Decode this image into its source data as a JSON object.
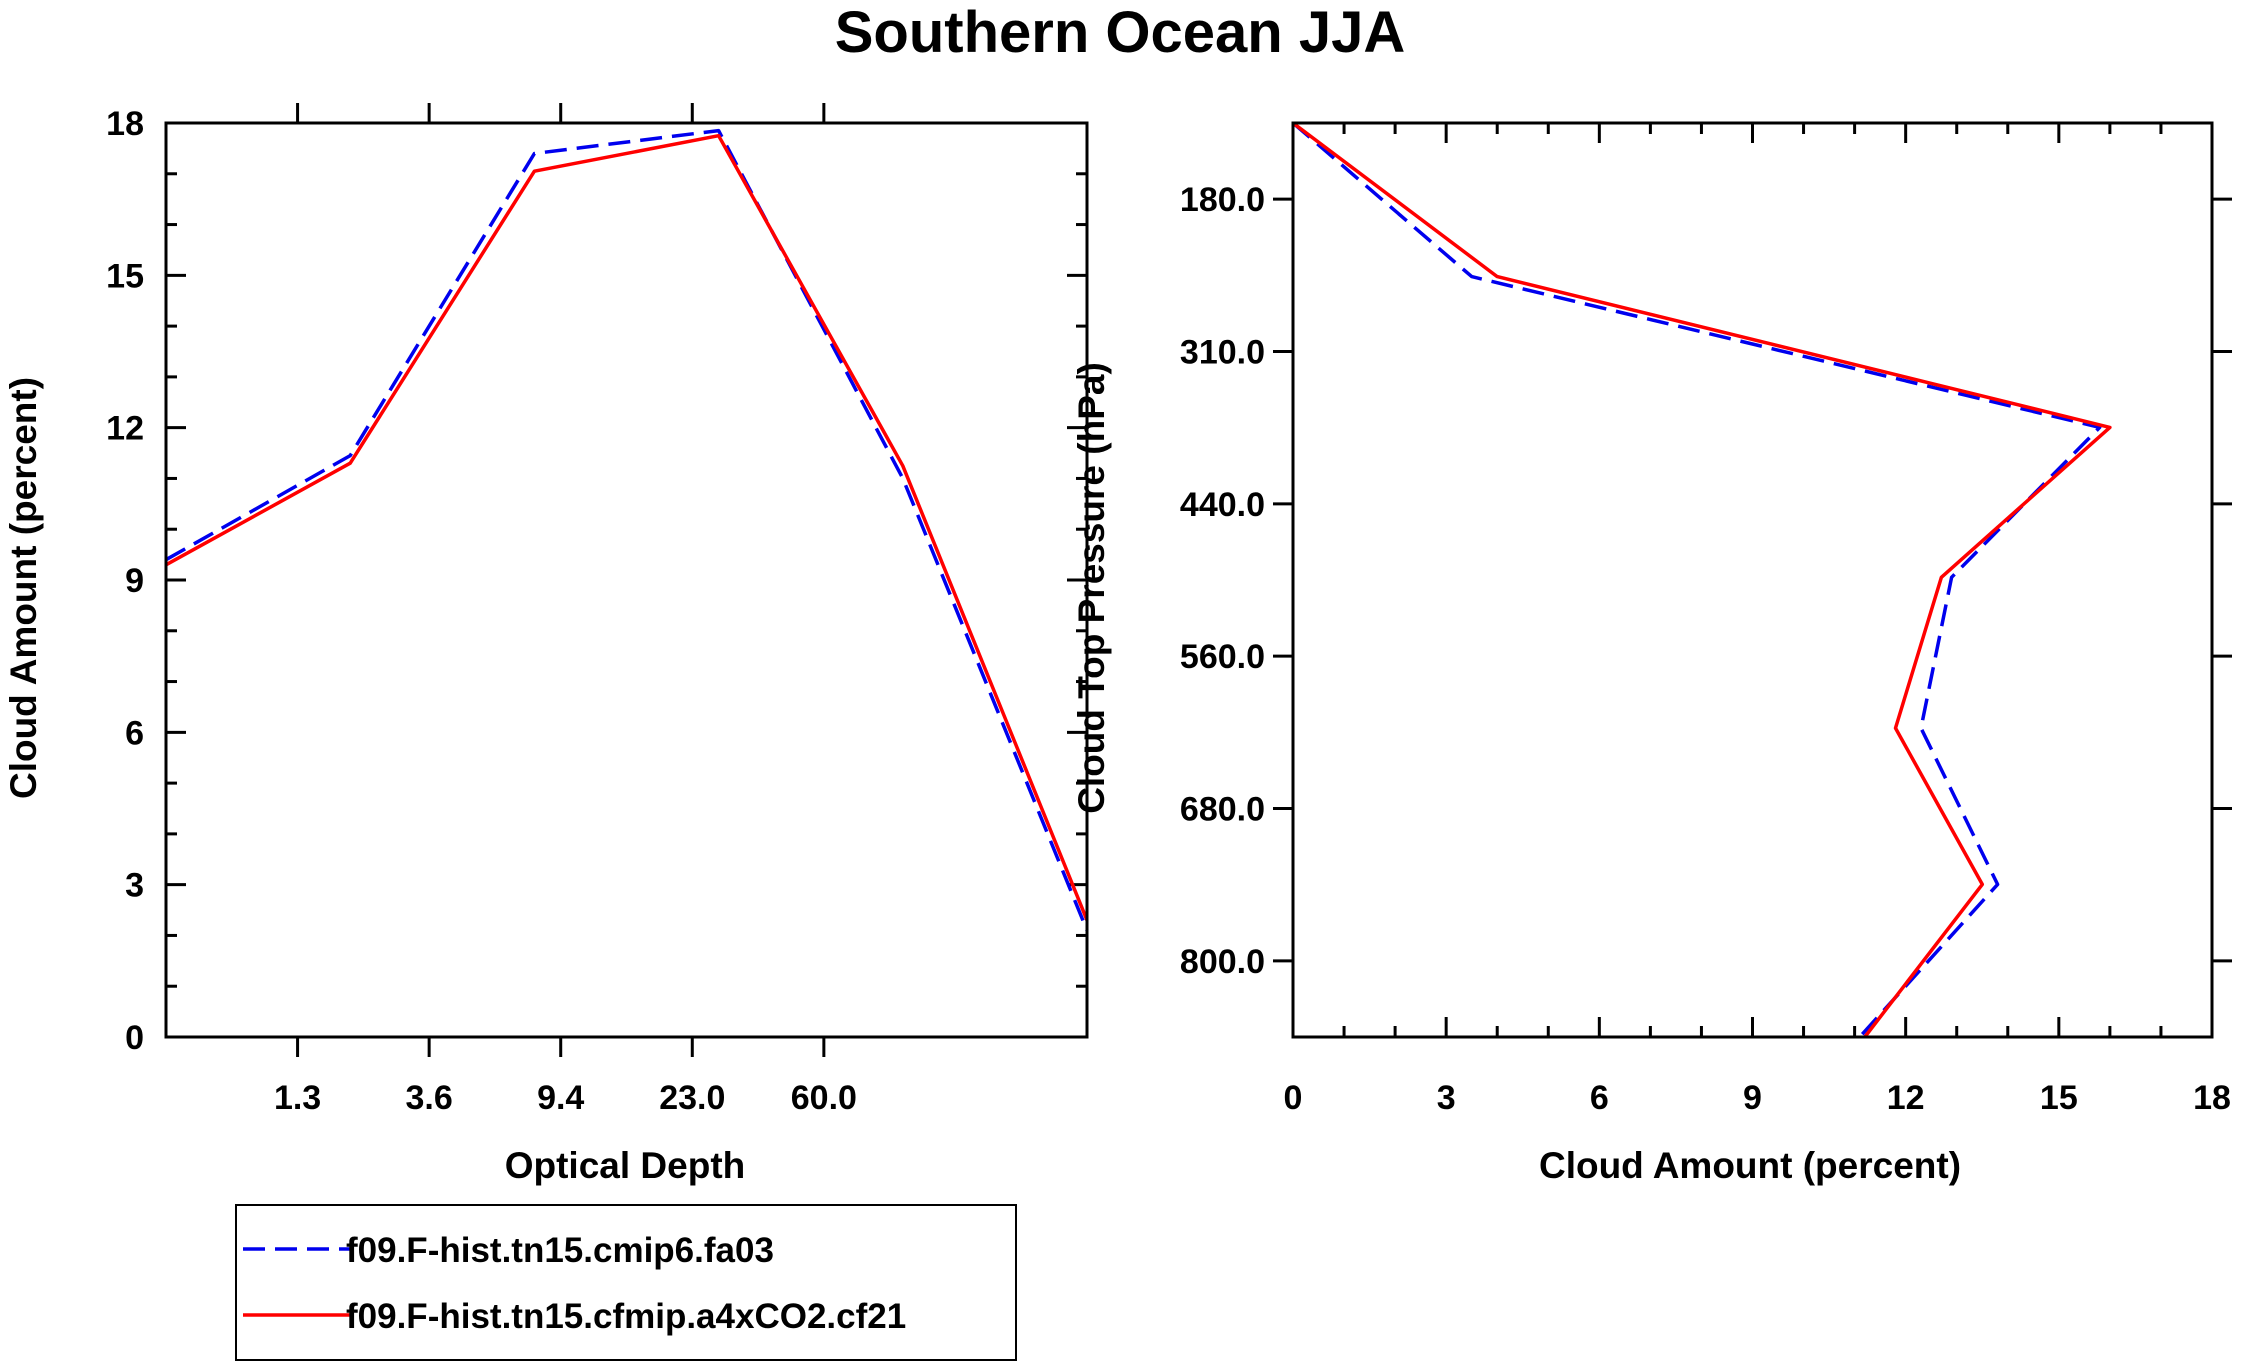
{
  "title": "Southern Ocean JJA",
  "chart_data": [
    {
      "type": "line",
      "xlabel": "Optical Depth",
      "ylabel": "Cloud Amount (percent)",
      "x_tick_labels": [
        "1.3",
        "3.6",
        "9.4",
        "23.0",
        "60.0"
      ],
      "y_ticks": [
        0,
        3,
        6,
        9,
        12,
        15,
        18
      ],
      "ylim": [
        0,
        18
      ],
      "x_bins": 7,
      "series": [
        {
          "name": "f09.F-hist.tn15.cmip6.fa03",
          "color": "#0000ee",
          "style": "dashed",
          "values": [
            9.4,
            11.45,
            17.4,
            17.85,
            11.0,
            2.1
          ]
        },
        {
          "name": "f09.F-hist.tn15.cfmip.a4xCO2.cf21",
          "color": "#ff0000",
          "style": "solid",
          "values": [
            9.3,
            11.3,
            17.05,
            17.75,
            11.25,
            2.3
          ]
        }
      ]
    },
    {
      "type": "line",
      "xlabel": "Cloud Amount (percent)",
      "ylabel": "Cloud Top Pressure (hPa)",
      "x_ticks": [
        0,
        3,
        6,
        9,
        12,
        15,
        18
      ],
      "xlim": [
        0,
        18
      ],
      "y_tick_labels": [
        "180.0",
        "310.0",
        "440.0",
        "560.0",
        "680.0",
        "800.0"
      ],
      "y_bins": 6,
      "series": [
        {
          "name": "f09.F-hist.tn15.cmip6.fa03",
          "color": "#0000ee",
          "style": "dashed",
          "values": [
            0.0,
            3.5,
            15.8,
            12.9,
            12.3,
            13.8,
            11.1
          ]
        },
        {
          "name": "f09.F-hist.tn15.cfmip.a4xCO2.cf21",
          "color": "#ff0000",
          "style": "solid",
          "values": [
            0.0,
            4.0,
            16.0,
            12.7,
            11.8,
            13.5,
            11.2
          ]
        }
      ]
    }
  ],
  "legend": [
    {
      "label": "f09.F-hist.tn15.cmip6.fa03",
      "color": "#0000ee",
      "style": "dashed"
    },
    {
      "label": "f09.F-hist.tn15.cfmip.a4xCO2.cf21",
      "color": "#ff0000",
      "style": "solid"
    }
  ]
}
